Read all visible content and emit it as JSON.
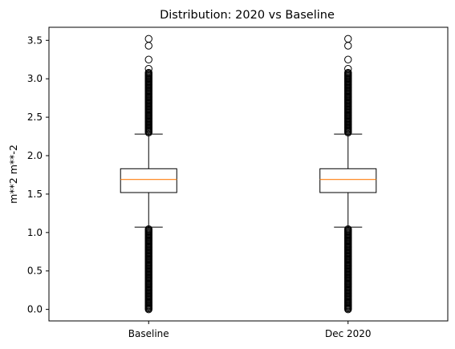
{
  "chart_data": {
    "type": "box",
    "title": "Distribution: 2020 vs Baseline",
    "xlabel": "",
    "ylabel": "m**2 m**-2",
    "ylim": [
      -0.15,
      3.67
    ],
    "yticks": [
      0.0,
      0.5,
      1.0,
      1.5,
      2.0,
      2.5,
      3.0,
      3.5
    ],
    "ytick_labels": [
      "0.0",
      "0.5",
      "1.0",
      "1.5",
      "2.0",
      "2.5",
      "3.0",
      "3.5"
    ],
    "categories": [
      "Baseline",
      "Dec 2020"
    ],
    "series": [
      {
        "name": "Baseline",
        "q1": 1.52,
        "median": 1.69,
        "q3": 1.83,
        "whisker_low": 1.07,
        "whisker_high": 2.28,
        "outliers_low_range": [
          0.0,
          1.05
        ],
        "outliers_high_range": [
          2.3,
          3.08
        ],
        "outliers_sparse": [
          3.13,
          3.25,
          3.43,
          3.52
        ]
      },
      {
        "name": "Dec 2020",
        "q1": 1.52,
        "median": 1.69,
        "q3": 1.83,
        "whisker_low": 1.07,
        "whisker_high": 2.28,
        "outliers_low_range": [
          0.0,
          1.05
        ],
        "outliers_high_range": [
          2.3,
          3.08
        ],
        "outliers_sparse": [
          3.13,
          3.25,
          3.43,
          3.52
        ]
      }
    ],
    "colors": {
      "box": "#000000",
      "median": "#ff7f0e",
      "outlier": "#000000"
    }
  }
}
